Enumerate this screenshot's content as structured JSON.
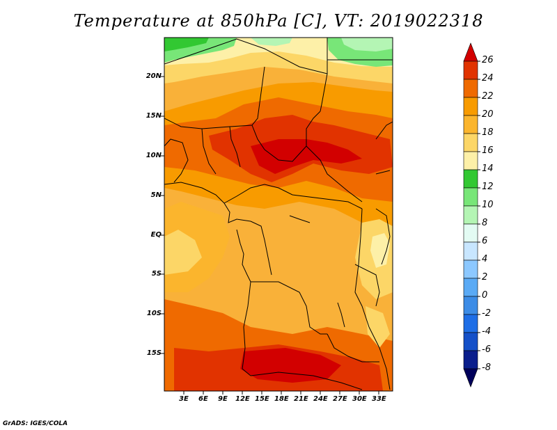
{
  "title": "Temperature at 850hPa [C], VT: 2019022318",
  "footer": "GrADS: IGES/COLA",
  "lat_labels": [
    "20N",
    "15N",
    "10N",
    "5N",
    "EQ",
    "5S",
    "10S",
    "15S"
  ],
  "lon_labels": [
    "3E",
    "6E",
    "9E",
    "12E",
    "15E",
    "18E",
    "21E",
    "24E",
    "27E",
    "30E",
    "33E"
  ],
  "colorbar": {
    "levels": [
      "26",
      "24",
      "22",
      "20",
      "18",
      "16",
      "14",
      "12",
      "10",
      "8",
      "6",
      "4",
      "2",
      "0",
      "-2",
      "-4",
      "-6",
      "-8"
    ],
    "colors": [
      "#d20000",
      "#e13300",
      "#ef6a00",
      "#f89b00",
      "#fbb52d",
      "#fcd667",
      "#fdf0a8",
      "#32c832",
      "#78e678",
      "#b4f5b4",
      "#e3fbf3",
      "#c8e6ff",
      "#8cc8ff",
      "#5aaaf5",
      "#3c8ce6",
      "#1e6ee6",
      "#1450c8",
      "#0a1e8c",
      "#00005a"
    ]
  }
}
